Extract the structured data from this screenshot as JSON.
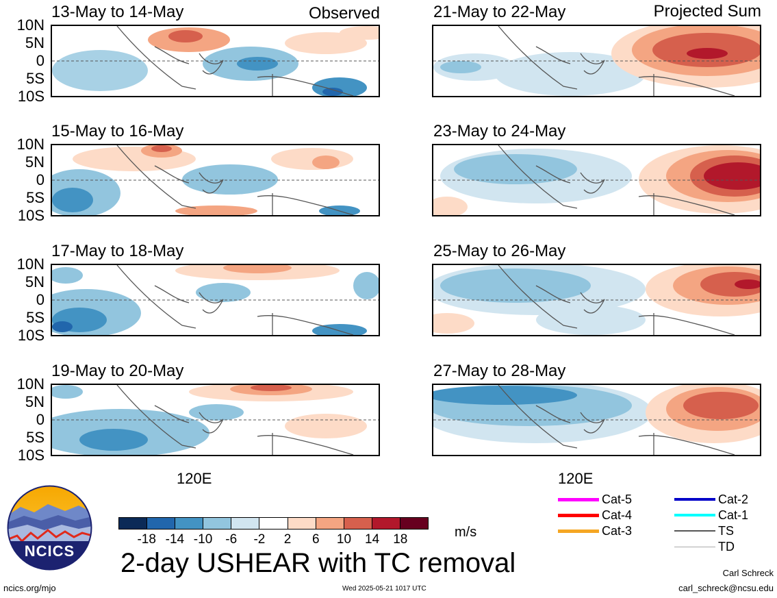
{
  "header": {
    "left_tag": "Observed",
    "right_tag": "Projected Sum"
  },
  "panels_left": [
    {
      "title": "13-May to 14-May"
    },
    {
      "title": "15-May to 16-May"
    },
    {
      "title": "17-May to 18-May"
    },
    {
      "title": "19-May to 20-May"
    }
  ],
  "panels_right": [
    {
      "title": "21-May to 22-May"
    },
    {
      "title": "23-May to 24-May"
    },
    {
      "title": "25-May to 26-May"
    },
    {
      "title": "27-May to 28-May"
    }
  ],
  "lat_labels": [
    "10N",
    "5N",
    "0",
    "5S",
    "10S"
  ],
  "lon_label": "120E",
  "colorbar": {
    "colors": [
      "#0b2a57",
      "#2166ac",
      "#4393c3",
      "#92c5de",
      "#d1e5f0",
      "#ffffff",
      "#fddbc7",
      "#f4a582",
      "#d6604d",
      "#b2182b",
      "#67001f"
    ],
    "ticks": [
      "-18",
      "-14",
      "-10",
      "-6",
      "-2",
      "2",
      "6",
      "10",
      "14",
      "18"
    ],
    "unit": "m/s"
  },
  "title": "2-day USHEAR with TC removal",
  "legend": [
    {
      "label": "Cat-5",
      "color": "#ff00ff"
    },
    {
      "label": "Cat-4",
      "color": "#ff0000"
    },
    {
      "label": "Cat-3",
      "color": "#f5a623"
    },
    {
      "label": "Cat-2",
      "color": "#0000c8"
    },
    {
      "label": "Cat-1",
      "color": "#00ffff"
    },
    {
      "label": "TS",
      "color": "#555555"
    },
    {
      "label": "TD",
      "color": "#aaaaaa"
    }
  ],
  "logo": {
    "text": "NCICS"
  },
  "footer": {
    "url": "ncics.org/mjo",
    "timestamp": "Wed 2025-05-21 1017 UTC",
    "author": "Carl Schreck",
    "email": "carl_schreck@ncsu.edu"
  }
}
